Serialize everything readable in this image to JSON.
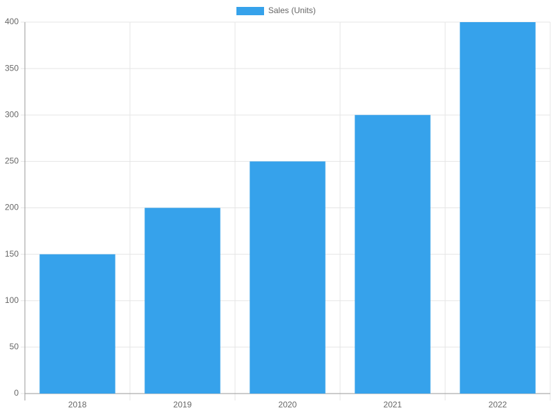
{
  "chart_data": {
    "type": "bar",
    "categories": [
      "2018",
      "2019",
      "2020",
      "2021",
      "2022"
    ],
    "series": [
      {
        "name": "Sales (Units)",
        "color": "#36a2eb",
        "values": [
          150,
          200,
          250,
          300,
          400
        ]
      }
    ],
    "ylim": [
      0,
      400
    ],
    "yticks": [
      0,
      50,
      100,
      150,
      200,
      250,
      300,
      350,
      400
    ],
    "grid": true,
    "legend": "top"
  }
}
